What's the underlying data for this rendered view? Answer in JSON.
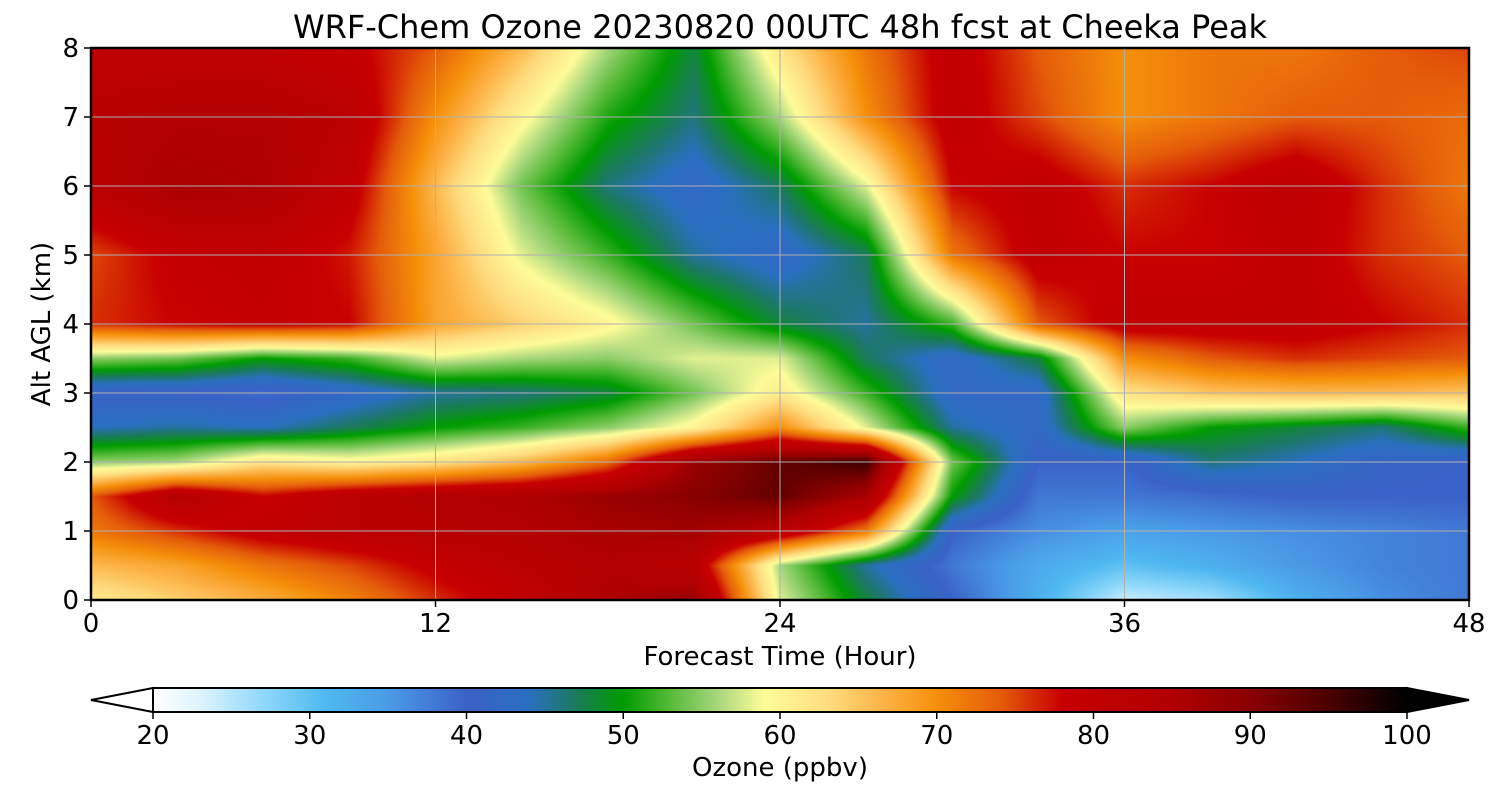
{
  "chart_data": {
    "type": "heatmap",
    "title": "WRF-Chem Ozone  20230820 00UTC 48h fcst at Cheeka Peak",
    "xlabel": "Forecast Time (Hour)",
    "ylabel": "Alt AGL (km)",
    "xlim": [
      0,
      48
    ],
    "ylim": [
      0,
      8
    ],
    "xticks": [
      0,
      12,
      24,
      36,
      48
    ],
    "yticks": [
      0,
      1,
      2,
      3,
      4,
      5,
      6,
      7,
      8
    ],
    "grid": true,
    "x": [
      0,
      3,
      6,
      9,
      12,
      15,
      18,
      21,
      24,
      27,
      30,
      33,
      36,
      39,
      42,
      45,
      48
    ],
    "y": [
      0,
      0.5,
      1,
      1.5,
      2,
      2.5,
      3,
      3.5,
      4,
      5,
      6,
      7,
      8
    ],
    "z": [
      [
        61,
        64,
        67,
        71,
        76,
        80,
        85,
        88,
        58,
        48,
        40,
        32,
        24,
        26,
        32,
        36,
        38
      ],
      [
        66,
        68,
        72,
        75,
        79,
        82,
        84,
        82,
        56,
        45,
        38,
        33,
        30,
        32,
        35,
        37,
        38
      ],
      [
        72,
        76,
        80,
        82,
        83,
        84,
        86,
        87,
        83,
        72,
        40,
        36,
        34,
        35,
        36,
        37,
        38
      ],
      [
        74,
        84,
        78,
        82,
        84,
        85,
        88,
        90,
        93,
        86,
        50,
        38,
        38,
        39,
        40,
        40,
        40
      ],
      [
        55,
        56,
        62,
        60,
        62,
        66,
        73,
        88,
        93,
        96,
        54,
        40,
        40,
        46,
        44,
        41,
        40
      ],
      [
        44,
        45,
        44,
        47,
        50,
        52,
        55,
        60,
        70,
        58,
        45,
        42,
        55,
        50,
        48,
        46,
        52
      ],
      [
        40,
        40,
        39,
        42,
        45,
        46,
        48,
        54,
        61,
        52,
        42,
        42,
        62,
        65,
        66,
        66,
        65
      ],
      [
        55,
        54,
        50,
        52,
        58,
        56,
        55,
        58,
        58,
        47,
        42,
        48,
        70,
        74,
        76,
        75,
        74
      ],
      [
        76,
        78,
        79,
        78,
        68,
        64,
        60,
        54,
        48,
        45,
        52,
        74,
        80,
        80,
        80,
        78,
        76
      ],
      [
        75,
        79,
        80,
        77,
        68,
        58,
        52,
        45,
        42,
        47,
        72,
        80,
        78,
        78,
        80,
        76,
        74
      ],
      [
        82,
        86,
        85,
        80,
        66,
        54,
        46,
        42,
        47,
        58,
        78,
        80,
        76,
        78,
        81,
        76,
        72
      ],
      [
        83,
        84,
        84,
        82,
        70,
        60,
        51,
        46,
        56,
        70,
        80,
        75,
        70,
        72,
        74,
        74,
        73
      ],
      [
        80,
        80,
        80,
        79,
        74,
        66,
        56,
        48,
        62,
        72,
        80,
        74,
        70,
        72,
        72,
        74,
        75
      ]
    ],
    "colorbar": {
      "label": "Ozone  (ppbv)",
      "min": 20,
      "max": 100,
      "ticks": [
        20,
        30,
        40,
        50,
        60,
        70,
        80,
        90,
        100
      ],
      "extend": "both",
      "stops": [
        [
          20,
          "#ffffff"
        ],
        [
          23,
          "#def4fe"
        ],
        [
          27,
          "#90d8fb"
        ],
        [
          31,
          "#4fb9f0"
        ],
        [
          35,
          "#4a9ae6"
        ],
        [
          40,
          "#3a62c8"
        ],
        [
          44,
          "#2a6fbf"
        ],
        [
          47,
          "#1a7a5a"
        ],
        [
          50,
          "#009c00"
        ],
        [
          53,
          "#56ba3a"
        ],
        [
          56,
          "#a7d77c"
        ],
        [
          59,
          "#fefc9a"
        ],
        [
          63,
          "#fedd80"
        ],
        [
          67,
          "#fcae40"
        ],
        [
          70,
          "#f5900a"
        ],
        [
          74,
          "#e55d0a"
        ],
        [
          78,
          "#c80000"
        ],
        [
          85,
          "#b00000"
        ],
        [
          90,
          "#8a0000"
        ],
        [
          95,
          "#4a0000"
        ],
        [
          100,
          "#000000"
        ]
      ]
    }
  }
}
